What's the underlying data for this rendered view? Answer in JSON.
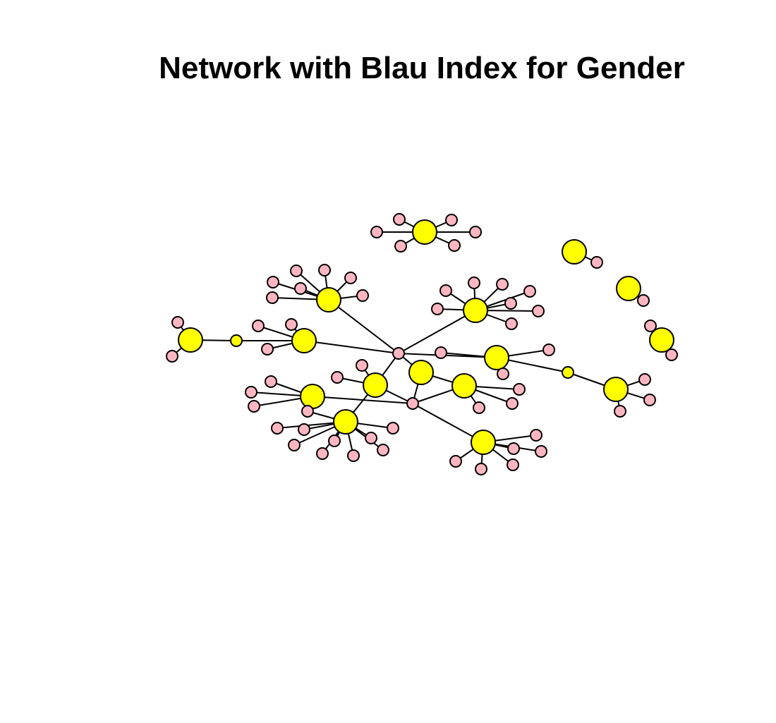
{
  "title": "Network with Blau Index for Gender",
  "colors": {
    "hub": "#ffff00",
    "leaf": "#ffb6c1",
    "edge": "#000000"
  }
}
